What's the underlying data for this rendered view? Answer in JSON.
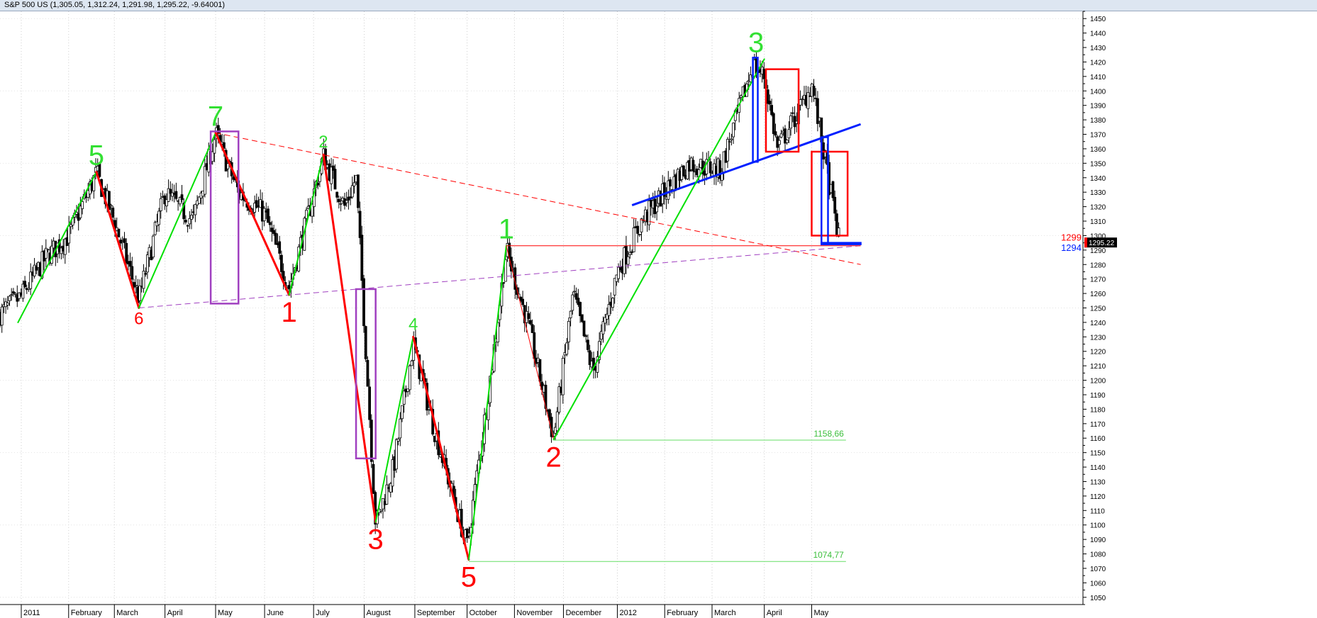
{
  "window": {
    "symbol": "S&P 500 US",
    "ohlc_readout": "(1,305.05, 1,312.24, 1,291.98, 1,295.22, -9.64001)"
  },
  "chart_data": {
    "type": "candlestick",
    "title": "",
    "y_axis": {
      "position": "right",
      "min": 1045,
      "max": 1455,
      "step": 10
    },
    "y_ticks": [
      1050,
      1060,
      1070,
      1080,
      1090,
      1100,
      1110,
      1120,
      1130,
      1140,
      1150,
      1160,
      1170,
      1180,
      1190,
      1200,
      1210,
      1220,
      1230,
      1240,
      1250,
      1260,
      1270,
      1280,
      1290,
      1300,
      1310,
      1320,
      1330,
      1340,
      1350,
      1360,
      1370,
      1380,
      1390,
      1400,
      1410,
      1420,
      1430,
      1440,
      1450
    ],
    "x_axis": {
      "labels": [
        {
          "text": "2011",
          "date": "2011-01-03"
        },
        {
          "text": "February",
          "date": "2011-02-01"
        },
        {
          "text": "March",
          "date": "2011-03-01"
        },
        {
          "text": "April",
          "date": "2011-04-01"
        },
        {
          "text": "May",
          "date": "2011-05-02"
        },
        {
          "text": "June",
          "date": "2011-06-01"
        },
        {
          "text": "July",
          "date": "2011-07-01"
        },
        {
          "text": "August",
          "date": "2011-08-01"
        },
        {
          "text": "September",
          "date": "2011-09-01"
        },
        {
          "text": "October",
          "date": "2011-10-03"
        },
        {
          "text": "November",
          "date": "2011-11-01"
        },
        {
          "text": "December",
          "date": "2011-12-01"
        },
        {
          "text": "2012",
          "date": "2012-01-03"
        },
        {
          "text": "February",
          "date": "2012-02-01"
        },
        {
          "text": "March",
          "date": "2012-03-01"
        },
        {
          "text": "April",
          "date": "2012-04-02"
        },
        {
          "text": "May",
          "date": "2012-05-01"
        }
      ]
    },
    "grid": true,
    "price_path": [
      [
        "2010-12-20",
        1245
      ],
      [
        "2011-01-03",
        1258
      ],
      [
        "2011-01-18",
        1285
      ],
      [
        "2011-02-01",
        1300
      ],
      [
        "2011-02-18",
        1343
      ],
      [
        "2011-03-01",
        1310
      ],
      [
        "2011-03-16",
        1256
      ],
      [
        "2011-04-01",
        1330
      ],
      [
        "2011-04-18",
        1310
      ],
      [
        "2011-05-02",
        1370
      ],
      [
        "2011-05-16",
        1330
      ],
      [
        "2011-06-01",
        1315
      ],
      [
        "2011-06-16",
        1264
      ],
      [
        "2011-07-07",
        1355
      ],
      [
        "2011-07-20",
        1320
      ],
      [
        "2011-07-27",
        1340
      ],
      [
        "2011-08-08",
        1100
      ],
      [
        "2011-08-19",
        1140
      ],
      [
        "2011-08-31",
        1225
      ],
      [
        "2011-09-12",
        1170
      ],
      [
        "2011-10-03",
        1085
      ],
      [
        "2011-10-17",
        1200
      ],
      [
        "2011-10-27",
        1290
      ],
      [
        "2011-11-09",
        1240
      ],
      [
        "2011-11-25",
        1160
      ],
      [
        "2011-12-07",
        1260
      ],
      [
        "2011-12-19",
        1205
      ],
      [
        "2012-01-03",
        1275
      ],
      [
        "2012-01-18",
        1310
      ],
      [
        "2012-02-01",
        1330
      ],
      [
        "2012-02-16",
        1350
      ],
      [
        "2012-03-06",
        1345
      ],
      [
        "2012-03-26",
        1418
      ],
      [
        "2012-04-02",
        1410
      ],
      [
        "2012-04-10",
        1360
      ],
      [
        "2012-04-24",
        1388
      ],
      [
        "2012-05-01",
        1405
      ],
      [
        "2012-05-18",
        1295
      ]
    ],
    "last_price": "1295.22",
    "zigzag": [
      {
        "from": [
          "2011-01-01",
          1240
        ],
        "to": [
          "2011-02-18",
          1344
        ],
        "color": "#00e000",
        "width": 2
      },
      {
        "from": [
          "2011-02-18",
          1344
        ],
        "to": [
          "2011-03-16",
          1250
        ],
        "color": "#ff0000",
        "width": 3
      },
      {
        "from": [
          "2011-03-16",
          1250
        ],
        "to": [
          "2011-05-02",
          1371
        ],
        "color": "#00e000",
        "width": 2
      },
      {
        "from": [
          "2011-05-02",
          1371
        ],
        "to": [
          "2011-06-16",
          1259
        ],
        "color": "#ff0000",
        "width": 3
      },
      {
        "from": [
          "2011-06-16",
          1259
        ],
        "to": [
          "2011-07-07",
          1356
        ],
        "color": "#00e000",
        "width": 2
      },
      {
        "from": [
          "2011-07-07",
          1356
        ],
        "to": [
          "2011-08-08",
          1102
        ],
        "color": "#ff0000",
        "width": 3
      },
      {
        "from": [
          "2011-08-08",
          1102
        ],
        "to": [
          "2011-08-31",
          1230
        ],
        "color": "#00e000",
        "width": 2
      },
      {
        "from": [
          "2011-08-31",
          1230
        ],
        "to": [
          "2011-10-04",
          1076
        ],
        "color": "#ff0000",
        "width": 3
      },
      {
        "from": [
          "2011-10-04",
          1076
        ],
        "to": [
          "2011-10-27",
          1293
        ],
        "color": "#00e000",
        "width": 2
      },
      {
        "from": [
          "2011-10-27",
          1293
        ],
        "to": [
          "2011-11-25",
          1159
        ],
        "color": "#ff0000",
        "width": 1
      },
      {
        "from": [
          "2011-11-25",
          1159
        ],
        "to": [
          "2012-04-02",
          1422
        ],
        "color": "#00e000",
        "width": 2
      }
    ],
    "trendlines": [
      {
        "from": [
          "2011-05-02",
          1371
        ],
        "to": [
          "2012-05-31",
          1280
        ],
        "color": "#ff0000",
        "style": "dashed"
      },
      {
        "from": [
          "2011-03-16",
          1250
        ],
        "to": [
          "2012-05-31",
          1293
        ],
        "color": "#a040c0",
        "style": "dashed"
      },
      {
        "from": [
          "2012-01-12",
          1321
        ],
        "to": [
          "2012-05-31",
          1377
        ],
        "color": "#0020ff",
        "style": "solid"
      },
      {
        "from": [
          "2011-10-27",
          1293
        ],
        "to": [
          "2012-05-31",
          1293
        ],
        "color": "#ff0000",
        "style": "thin"
      }
    ],
    "boxes": [
      {
        "x0": "2011-04-29",
        "x1": "2011-05-16",
        "y0": 1253,
        "y1": 1372,
        "color": "#a040c0"
      },
      {
        "x0": "2011-07-27",
        "x1": "2011-08-08",
        "y0": 1146,
        "y1": 1263,
        "color": "#a040c0"
      },
      {
        "x0": "2012-04-03",
        "x1": "2012-04-23",
        "y0": 1358,
        "y1": 1415,
        "color": "#ff0000"
      },
      {
        "x0": "2012-05-01",
        "x1": "2012-05-23",
        "y0": 1300,
        "y1": 1358,
        "color": "#ff0000"
      },
      {
        "x0": "2012-03-26",
        "x1": "2012-03-29",
        "y0": 1351,
        "y1": 1423,
        "color": "#0020ff"
      },
      {
        "x0": "2012-05-07",
        "x1": "2012-05-11",
        "y0": 1294,
        "y1": 1368,
        "color": "#0020ff"
      },
      {
        "x0": "2012-05-07",
        "x1": "2012-05-31",
        "y0": 1294,
        "y1": 1295,
        "color": "#0020ff"
      }
    ],
    "support_lines": [
      {
        "date_from": "2011-11-25",
        "date_to": "2012-05-22",
        "y": 1158.66,
        "label": "1158,66",
        "color": "#66dd66"
      },
      {
        "date_from": "2011-10-04",
        "date_to": "2012-05-22",
        "y": 1074.77,
        "label": "1074,77",
        "color": "#66dd66"
      }
    ],
    "annotations": [
      {
        "text": "5",
        "date": "2011-02-18",
        "y": 1344,
        "color": "#33e033",
        "size": 40,
        "pos": "above"
      },
      {
        "text": "6",
        "date": "2011-03-16",
        "y": 1250,
        "color": "#ff0000",
        "size": 24,
        "pos": "below"
      },
      {
        "text": "7",
        "date": "2011-05-02",
        "y": 1371,
        "color": "#33e033",
        "size": 40,
        "pos": "above"
      },
      {
        "text": "1",
        "date": "2011-06-16",
        "y": 1259,
        "color": "#ff0000",
        "size": 40,
        "pos": "below"
      },
      {
        "text": "2",
        "date": "2011-07-07",
        "y": 1356,
        "color": "#33e033",
        "size": 24,
        "pos": "above"
      },
      {
        "text": "3",
        "date": "2011-08-08",
        "y": 1102,
        "color": "#ff0000",
        "size": 40,
        "pos": "below"
      },
      {
        "text": "4",
        "date": "2011-08-31",
        "y": 1230,
        "color": "#33e033",
        "size": 24,
        "pos": "above"
      },
      {
        "text": "5",
        "date": "2011-10-04",
        "y": 1076,
        "color": "#ff0000",
        "size": 40,
        "pos": "below"
      },
      {
        "text": "1",
        "date": "2011-10-27",
        "y": 1293,
        "color": "#33e033",
        "size": 40,
        "pos": "above"
      },
      {
        "text": "2",
        "date": "2011-11-25",
        "y": 1159,
        "color": "#ff0000",
        "size": 40,
        "pos": "below"
      },
      {
        "text": "3",
        "date": "2012-03-28",
        "y": 1422,
        "color": "#33e033",
        "size": 40,
        "pos": "above"
      }
    ],
    "right_labels": [
      {
        "text": "1299",
        "y": 1299,
        "color": "#ff0000"
      },
      {
        "text": "1294",
        "y": 1292,
        "color": "#0020ff"
      }
    ]
  }
}
